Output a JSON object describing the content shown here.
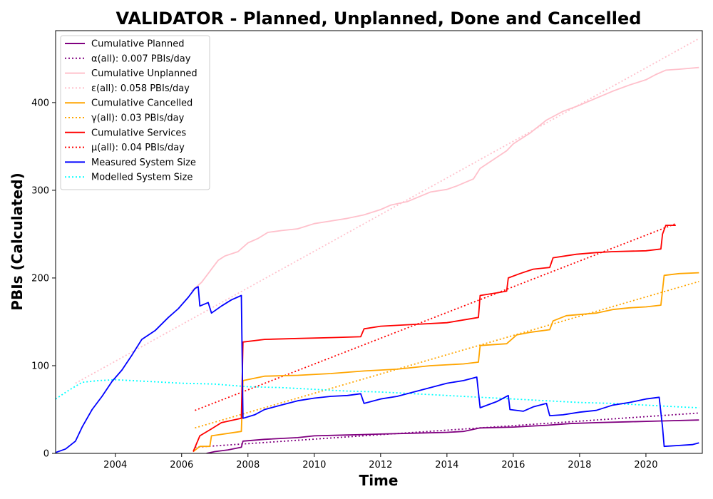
{
  "chart_data": {
    "type": "line",
    "title": "VALIDATOR - Planned, Unplanned, Done  and Cancelled",
    "xlabel": "Time",
    "ylabel": "PBIs (Calculated)",
    "xlim": [
      2002.2,
      2021.7
    ],
    "ylim": [
      0,
      482
    ],
    "xticks": [
      2004,
      2006,
      2008,
      2010,
      2012,
      2014,
      2016,
      2018,
      2020
    ],
    "yticks": [
      0,
      100,
      200,
      300,
      400
    ],
    "grid": false,
    "legend_position": "top-left",
    "series": [
      {
        "name": "Cumulative Planned",
        "style": "solid",
        "color": "#800080",
        "points": [
          [
            2006.75,
            0
          ],
          [
            2007.0,
            2
          ],
          [
            2007.4,
            4
          ],
          [
            2007.8,
            7
          ],
          [
            2007.85,
            14
          ],
          [
            2008.5,
            16
          ],
          [
            2009.5,
            18
          ],
          [
            2010.0,
            20
          ],
          [
            2011.0,
            21
          ],
          [
            2012.0,
            22
          ],
          [
            2013.0,
            23
          ],
          [
            2014.0,
            24
          ],
          [
            2014.5,
            25
          ],
          [
            2015.0,
            29
          ],
          [
            2016.0,
            30
          ],
          [
            2017.0,
            32
          ],
          [
            2017.7,
            34
          ],
          [
            2018.5,
            35
          ],
          [
            2019.5,
            36
          ],
          [
            2020.5,
            37
          ],
          [
            2021.6,
            38
          ]
        ]
      },
      {
        "name": "α(all): 0.007 PBIs/day",
        "style": "dotted",
        "color": "#800080",
        "points": [
          [
            2006.4,
            7
          ],
          [
            2021.6,
            46
          ]
        ]
      },
      {
        "name": "Cumulative Unplanned",
        "style": "solid",
        "color": "#ffc0cb",
        "points": [
          [
            2006.3,
            185
          ],
          [
            2006.6,
            195
          ],
          [
            2006.9,
            210
          ],
          [
            2007.1,
            220
          ],
          [
            2007.3,
            225
          ],
          [
            2007.7,
            230
          ],
          [
            2008.0,
            240
          ],
          [
            2008.3,
            245
          ],
          [
            2008.6,
            252
          ],
          [
            2009.0,
            254
          ],
          [
            2009.5,
            256
          ],
          [
            2010.0,
            262
          ],
          [
            2010.5,
            265
          ],
          [
            2011.0,
            268
          ],
          [
            2011.5,
            272
          ],
          [
            2012.0,
            278
          ],
          [
            2012.3,
            283
          ],
          [
            2012.8,
            287
          ],
          [
            2013.5,
            298
          ],
          [
            2014.0,
            301
          ],
          [
            2014.3,
            305
          ],
          [
            2014.8,
            313
          ],
          [
            2015.0,
            325
          ],
          [
            2015.4,
            335
          ],
          [
            2015.8,
            345
          ],
          [
            2016.0,
            353
          ],
          [
            2016.5,
            365
          ],
          [
            2017.0,
            380
          ],
          [
            2017.5,
            390
          ],
          [
            2018.0,
            397
          ],
          [
            2018.5,
            405
          ],
          [
            2019.0,
            413
          ],
          [
            2019.5,
            420
          ],
          [
            2020.0,
            426
          ],
          [
            2020.3,
            432
          ],
          [
            2020.6,
            437
          ],
          [
            2021.0,
            438
          ],
          [
            2021.6,
            440
          ]
        ]
      },
      {
        "name": "ε(all): 0.058 PBIs/day",
        "style": "dotted",
        "color": "#ffc0cb",
        "points": [
          [
            2002.8,
            80
          ],
          [
            2021.6,
            473
          ]
        ]
      },
      {
        "name": "Cumulative Cancelled",
        "style": "solid",
        "color": "#ffa500",
        "points": [
          [
            2006.35,
            2
          ],
          [
            2006.55,
            8
          ],
          [
            2006.85,
            8
          ],
          [
            2006.9,
            20
          ],
          [
            2007.8,
            25
          ],
          [
            2007.85,
            83
          ],
          [
            2008.5,
            88
          ],
          [
            2009.5,
            89
          ],
          [
            2010.5,
            91
          ],
          [
            2011.5,
            94
          ],
          [
            2012.5,
            96
          ],
          [
            2013.5,
            100
          ],
          [
            2014.5,
            102
          ],
          [
            2014.95,
            104
          ],
          [
            2015.0,
            123
          ],
          [
            2015.8,
            125
          ],
          [
            2016.1,
            135
          ],
          [
            2016.5,
            138
          ],
          [
            2017.1,
            141
          ],
          [
            2017.2,
            151
          ],
          [
            2017.6,
            157
          ],
          [
            2018.5,
            160
          ],
          [
            2019.0,
            164
          ],
          [
            2019.5,
            166
          ],
          [
            2020.0,
            167
          ],
          [
            2020.45,
            169
          ],
          [
            2020.55,
            203
          ],
          [
            2021.0,
            205
          ],
          [
            2021.6,
            206
          ]
        ]
      },
      {
        "name": "γ(all): 0.03 PBIs/day",
        "style": "dotted",
        "color": "#ffa500",
        "points": [
          [
            2006.4,
            29
          ],
          [
            2021.6,
            196
          ]
        ]
      },
      {
        "name": "Cumulative Services",
        "style": "solid",
        "color": "#ff0000",
        "points": [
          [
            2006.35,
            2
          ],
          [
            2006.55,
            20
          ],
          [
            2006.9,
            28
          ],
          [
            2007.2,
            35
          ],
          [
            2007.8,
            40
          ],
          [
            2007.85,
            127
          ],
          [
            2008.5,
            130
          ],
          [
            2009.5,
            131
          ],
          [
            2010.5,
            132
          ],
          [
            2011.4,
            133
          ],
          [
            2011.5,
            142
          ],
          [
            2012.0,
            145
          ],
          [
            2013.0,
            147
          ],
          [
            2014.0,
            149
          ],
          [
            2014.95,
            155
          ],
          [
            2015.0,
            180
          ],
          [
            2015.5,
            183
          ],
          [
            2015.8,
            185
          ],
          [
            2015.85,
            200
          ],
          [
            2016.2,
            205
          ],
          [
            2016.6,
            210
          ],
          [
            2017.1,
            212
          ],
          [
            2017.2,
            223
          ],
          [
            2017.9,
            227
          ],
          [
            2018.5,
            229
          ],
          [
            2019.0,
            230
          ],
          [
            2020.0,
            231
          ],
          [
            2020.45,
            233
          ],
          [
            2020.5,
            250
          ],
          [
            2020.6,
            260
          ],
          [
            2020.9,
            260
          ]
        ]
      },
      {
        "name": "μ(all): 0.04 PBIs/day",
        "style": "dotted",
        "color": "#ff0000",
        "points": [
          [
            2006.4,
            49
          ],
          [
            2020.9,
            262
          ]
        ]
      },
      {
        "name": "Measured System Size",
        "style": "solid",
        "color": "#0000ff",
        "points": [
          [
            2002.2,
            1
          ],
          [
            2002.5,
            5
          ],
          [
            2002.8,
            14
          ],
          [
            2003.0,
            30
          ],
          [
            2003.3,
            50
          ],
          [
            2003.6,
            65
          ],
          [
            2003.9,
            82
          ],
          [
            2004.2,
            95
          ],
          [
            2004.5,
            112
          ],
          [
            2004.8,
            130
          ],
          [
            2005.2,
            140
          ],
          [
            2005.6,
            155
          ],
          [
            2005.9,
            165
          ],
          [
            2006.2,
            178
          ],
          [
            2006.4,
            188
          ],
          [
            2006.5,
            190
          ],
          [
            2006.55,
            168
          ],
          [
            2006.8,
            172
          ],
          [
            2006.9,
            160
          ],
          [
            2007.2,
            168
          ],
          [
            2007.5,
            175
          ],
          [
            2007.8,
            180
          ],
          [
            2007.85,
            40
          ],
          [
            2008.2,
            44
          ],
          [
            2008.5,
            50
          ],
          [
            2009.0,
            55
          ],
          [
            2009.5,
            60
          ],
          [
            2010.0,
            63
          ],
          [
            2010.5,
            65
          ],
          [
            2011.0,
            66
          ],
          [
            2011.4,
            68
          ],
          [
            2011.5,
            57
          ],
          [
            2012.0,
            62
          ],
          [
            2012.5,
            65
          ],
          [
            2013.0,
            70
          ],
          [
            2013.5,
            75
          ],
          [
            2014.0,
            80
          ],
          [
            2014.5,
            83
          ],
          [
            2014.9,
            87
          ],
          [
            2015.0,
            52
          ],
          [
            2015.5,
            59
          ],
          [
            2015.85,
            66
          ],
          [
            2015.9,
            50
          ],
          [
            2016.3,
            48
          ],
          [
            2016.6,
            53
          ],
          [
            2017.0,
            57
          ],
          [
            2017.1,
            43
          ],
          [
            2017.5,
            44
          ],
          [
            2018.0,
            47
          ],
          [
            2018.5,
            49
          ],
          [
            2019.0,
            55
          ],
          [
            2019.5,
            58
          ],
          [
            2020.0,
            62
          ],
          [
            2020.4,
            64
          ],
          [
            2020.5,
            30
          ],
          [
            2020.55,
            8
          ],
          [
            2021.0,
            9
          ],
          [
            2021.4,
            10
          ],
          [
            2021.6,
            12
          ]
        ]
      },
      {
        "name": "Modelled System Size",
        "style": "dotted",
        "color": "#00ffff",
        "points": [
          [
            2002.2,
            62
          ],
          [
            2002.6,
            72
          ],
          [
            2003.0,
            81
          ],
          [
            2003.5,
            83
          ],
          [
            2004.0,
            84
          ],
          [
            2005.0,
            82
          ],
          [
            2006.0,
            80
          ],
          [
            2007.0,
            79
          ],
          [
            2008.0,
            76
          ],
          [
            2009.0,
            75
          ],
          [
            2010.0,
            73
          ],
          [
            2011.0,
            71
          ],
          [
            2012.0,
            70
          ],
          [
            2013.0,
            68
          ],
          [
            2014.0,
            66
          ],
          [
            2015.0,
            64
          ],
          [
            2016.0,
            62
          ],
          [
            2017.0,
            60
          ],
          [
            2018.0,
            58
          ],
          [
            2019.0,
            57
          ],
          [
            2020.0,
            55
          ],
          [
            2021.0,
            53
          ],
          [
            2021.6,
            52
          ]
        ]
      }
    ]
  }
}
